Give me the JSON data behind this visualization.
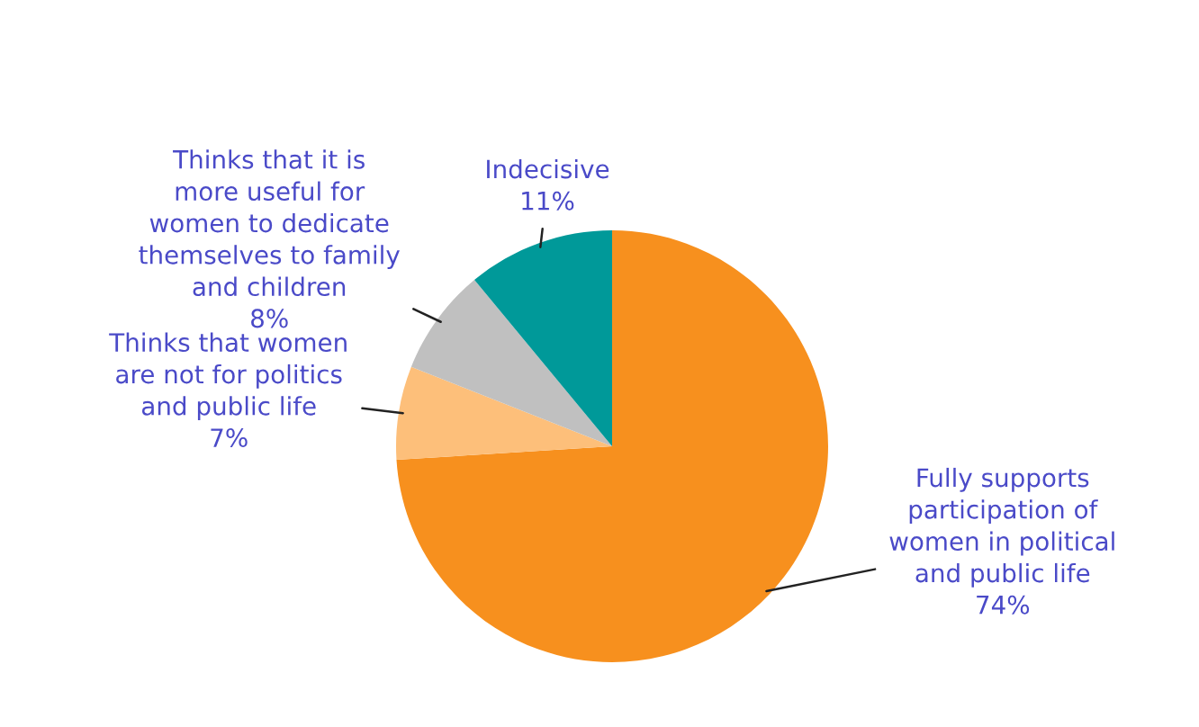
{
  "chart_data": {
    "type": "pie",
    "categories": [
      "Fully supports\nparticipation of\nwomen in political\nand public life",
      "Thinks that women\nare not for politics\nand public life",
      "Thinks that it is\nmore useful for\nwomen to dedicate\nthemselves to family\nand children",
      "Indecisive"
    ],
    "values": [
      74,
      7,
      8,
      11
    ],
    "value_labels": [
      "74%",
      "7%",
      "8%",
      "11%"
    ],
    "colors": [
      "#f7901e",
      "#fdbf7a",
      "#c0c0c0",
      "#009999"
    ]
  }
}
